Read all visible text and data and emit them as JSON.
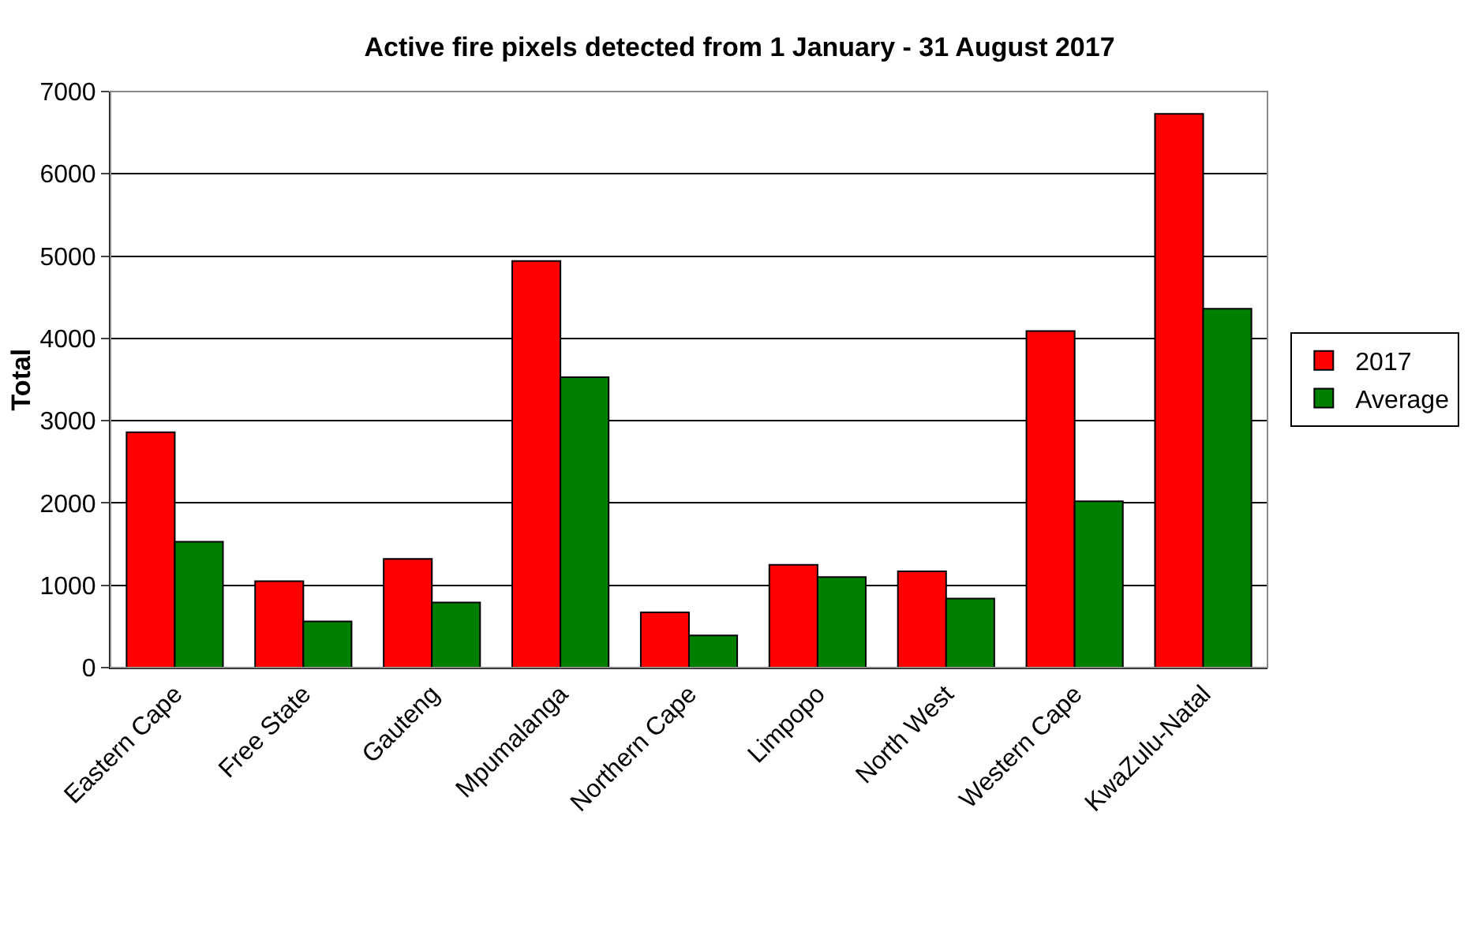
{
  "chart_data": {
    "type": "bar",
    "title": "Active fire pixels detected from 1 January - 31 August 2017",
    "ylabel": "Total",
    "categories": [
      "Eastern Cape",
      "Free State",
      "Gauteng",
      "Mpumalanga",
      "Northern Cape",
      "Limpopo",
      "North West",
      "Western Cape",
      "KwaZulu-Natal"
    ],
    "series": [
      {
        "name": "2017",
        "color": "#ff0000",
        "values": [
          2860,
          1050,
          1320,
          4940,
          670,
          1250,
          1170,
          4090,
          6730
        ]
      },
      {
        "name": "Average",
        "color": "#008000",
        "values": [
          1530,
          560,
          790,
          3530,
          390,
          1100,
          840,
          2020,
          4360
        ]
      }
    ],
    "ylim": [
      0,
      7000
    ],
    "yticks": [
      0,
      1000,
      2000,
      3000,
      4000,
      5000,
      6000,
      7000
    ],
    "grid": "y",
    "legend": "right"
  }
}
